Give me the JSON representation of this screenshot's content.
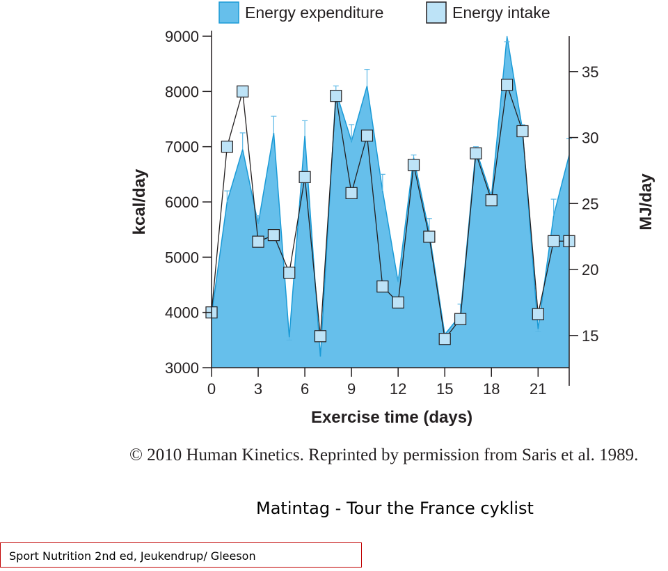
{
  "chart_data": {
    "type": "area",
    "legend": {
      "position": "top",
      "entries": [
        {
          "label": "Energy expenditure",
          "color": "#66bfeb"
        },
        {
          "label": "Energy intake",
          "color": "#bde3f7"
        }
      ]
    },
    "xlabel": "Exercise time (days)",
    "ylabel": "kcal/day",
    "y2label": "MJ/day",
    "xlim": [
      0,
      23
    ],
    "ylim": [
      3000,
      9000
    ],
    "y2lim": [
      12.56,
      37.68
    ],
    "x_ticks": [
      "0",
      "3",
      "6",
      "9",
      "12",
      "15",
      "18",
      "21"
    ],
    "y_ticks": [
      "3000",
      "4000",
      "5000",
      "6000",
      "7000",
      "8000",
      "9000"
    ],
    "y2_ticks": [
      "15",
      "20",
      "25",
      "30",
      "35"
    ],
    "grid": false,
    "series": [
      {
        "name": "Energy expenditure",
        "style": "filled-area",
        "color": "#66bfeb",
        "x": [
          0,
          1,
          2,
          3,
          4,
          5,
          6,
          7,
          8,
          9,
          10,
          11,
          12,
          13,
          14,
          15,
          16,
          17,
          18,
          19,
          20,
          21,
          22,
          23
        ],
        "values": [
          3950,
          6000,
          6950,
          5600,
          7250,
          3550,
          7200,
          3200,
          8000,
          7100,
          8100,
          6200,
          4550,
          6800,
          5450,
          3600,
          3950,
          6950,
          6100,
          9000,
          7300,
          3700,
          5750,
          6850
        ],
        "error_bars": [
          null,
          6200,
          7250,
          5750,
          7550,
          3500,
          7470,
          null,
          8100,
          7400,
          8400,
          6500,
          4650,
          6850,
          5700,
          null,
          4150,
          7000,
          6150,
          8900,
          7400,
          3650,
          6050,
          7150
        ]
      },
      {
        "name": "Energy intake",
        "style": "line-square-markers",
        "color": "#bde3f7",
        "x": [
          0,
          1,
          2,
          3,
          4,
          5,
          6,
          7,
          8,
          9,
          10,
          11,
          12,
          13,
          14,
          15,
          16,
          17,
          18,
          19,
          20,
          21,
          22,
          23
        ],
        "values": [
          4000,
          7000,
          8000,
          5280,
          5400,
          4720,
          6450,
          3570,
          7920,
          6160,
          7200,
          4470,
          4180,
          6670,
          5370,
          3520,
          3880,
          6880,
          6030,
          8120,
          7280,
          3970,
          5290,
          5290
        ]
      }
    ]
  },
  "credit": "© 2010 Human Kinetics. Reprinted by permission from Saris et al. 1989.",
  "slide": {
    "title": "Matintag - Tour the France cyklist",
    "source": "Sport Nutrition 2nd ed, Jeukendrup/ Gleeson"
  }
}
